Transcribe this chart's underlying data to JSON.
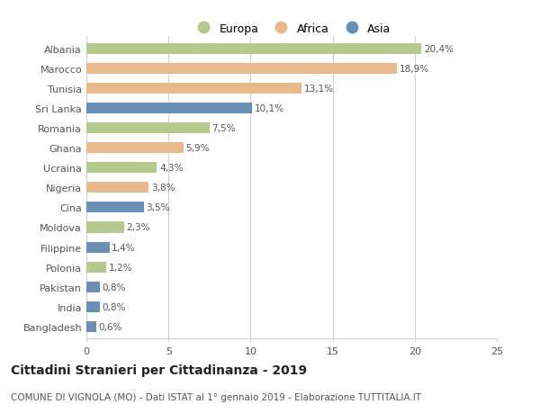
{
  "categories": [
    "Albania",
    "Marocco",
    "Tunisia",
    "Sri Lanka",
    "Romania",
    "Ghana",
    "Ucraina",
    "Nigeria",
    "Cina",
    "Moldova",
    "Filippine",
    "Polonia",
    "Pakistan",
    "India",
    "Bangladesh"
  ],
  "values": [
    20.4,
    18.9,
    13.1,
    10.1,
    7.5,
    5.9,
    4.3,
    3.8,
    3.5,
    2.3,
    1.4,
    1.2,
    0.8,
    0.8,
    0.6
  ],
  "labels": [
    "20,4%",
    "18,9%",
    "13,1%",
    "10,1%",
    "7,5%",
    "5,9%",
    "4,3%",
    "3,8%",
    "3,5%",
    "2,3%",
    "1,4%",
    "1,2%",
    "0,8%",
    "0,8%",
    "0,6%"
  ],
  "colors": [
    "#b5c98e",
    "#e8b98a",
    "#e8b98a",
    "#6a8fb5",
    "#b5c98e",
    "#e8b98a",
    "#b5c98e",
    "#e8b98a",
    "#6a8fb5",
    "#b5c98e",
    "#6a8fb5",
    "#b5c98e",
    "#6a8fb5",
    "#6a8fb5",
    "#6a8fb5"
  ],
  "legend_labels": [
    "Europa",
    "Africa",
    "Asia"
  ],
  "legend_colors": [
    "#b5c98e",
    "#e8b98a",
    "#6a8fb5"
  ],
  "title": "Cittadini Stranieri per Cittadinanza - 2019",
  "subtitle": "COMUNE DI VIGNOLA (MO) - Dati ISTAT al 1° gennaio 2019 - Elaborazione TUTTITALIA.IT",
  "xlim": [
    0,
    25
  ],
  "xticks": [
    0,
    5,
    10,
    15,
    20,
    25
  ],
  "background_color": "#ffffff",
  "grid_color": "#d0d0d0",
  "bar_height": 0.55,
  "label_fontsize": 7.5,
  "title_fontsize": 10,
  "subtitle_fontsize": 7.5,
  "tick_fontsize": 8,
  "legend_fontsize": 9
}
